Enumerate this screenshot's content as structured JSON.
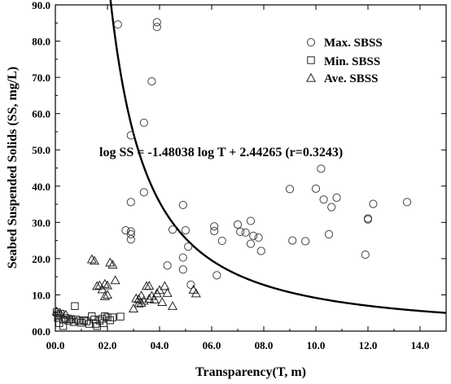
{
  "chart_data": {
    "type": "scatter",
    "xlabel": "Transparency(T, m)",
    "ylabel": "Seabed Suspended Solids  (SS, mg/L)",
    "xlim": [
      0,
      15
    ],
    "ylim": [
      0,
      90
    ],
    "xticks": [
      0,
      2,
      4,
      6,
      8,
      10,
      12,
      14
    ],
    "xtick_labels": [
      "00.0",
      "02.0",
      "04.0",
      "06.0",
      "08.0",
      "10.0",
      "12.0",
      "14.0"
    ],
    "yticks": [
      0,
      10,
      20,
      30,
      40,
      50,
      60,
      70,
      80,
      90
    ],
    "ytick_labels": [
      "00.0",
      "10.0",
      "20.0",
      "30.0",
      "40.0",
      "50.0",
      "60.0",
      "70.0",
      "80.0",
      "90.0"
    ],
    "grid": false,
    "legend_position": "top-right",
    "series": [
      {
        "name": "Max. SBSS",
        "marker": "circle",
        "points": [
          [
            2.4,
            84.6
          ],
          [
            3.9,
            85.2
          ],
          [
            3.9,
            83.9
          ],
          [
            3.7,
            68.9
          ],
          [
            3.4,
            57.5
          ],
          [
            2.9,
            54.0
          ],
          [
            3.4,
            38.3
          ],
          [
            2.9,
            35.6
          ],
          [
            4.9,
            34.8
          ],
          [
            2.7,
            27.8
          ],
          [
            2.9,
            27.5
          ],
          [
            2.9,
            26.7
          ],
          [
            2.9,
            25.3
          ],
          [
            4.5,
            28.0
          ],
          [
            5.0,
            27.8
          ],
          [
            5.1,
            23.3
          ],
          [
            4.9,
            20.3
          ],
          [
            4.9,
            17.0
          ],
          [
            4.3,
            18.1
          ],
          [
            5.2,
            12.8
          ],
          [
            6.1,
            28.9
          ],
          [
            6.1,
            27.6
          ],
          [
            6.2,
            15.4
          ],
          [
            6.4,
            24.9
          ],
          [
            7.0,
            29.4
          ],
          [
            7.1,
            27.4
          ],
          [
            7.3,
            27.2
          ],
          [
            7.5,
            30.4
          ],
          [
            7.5,
            24.1
          ],
          [
            7.6,
            26.3
          ],
          [
            7.8,
            25.8
          ],
          [
            7.9,
            22.1
          ],
          [
            9.0,
            39.2
          ],
          [
            9.1,
            25.0
          ],
          [
            9.6,
            24.8
          ],
          [
            10.0,
            39.3
          ],
          [
            10.2,
            44.8
          ],
          [
            10.3,
            36.3
          ],
          [
            10.6,
            34.2
          ],
          [
            10.8,
            36.8
          ],
          [
            10.5,
            26.7
          ],
          [
            12.0,
            31.1
          ],
          [
            12.0,
            30.8
          ],
          [
            12.2,
            35.1
          ],
          [
            13.5,
            35.6
          ],
          [
            11.9,
            21.1
          ]
        ]
      },
      {
        "name": "Min. SBSS",
        "marker": "square",
        "points": [
          [
            0.05,
            5.2
          ],
          [
            0.1,
            4.4
          ],
          [
            0.1,
            3.6
          ],
          [
            0.2,
            4.8
          ],
          [
            0.3,
            3.2
          ],
          [
            0.15,
            2.2
          ],
          [
            0.3,
            1.4
          ],
          [
            0.4,
            3.6
          ],
          [
            0.5,
            2.9
          ],
          [
            0.6,
            3.3
          ],
          [
            0.7,
            2.5
          ],
          [
            0.75,
            6.9
          ],
          [
            0.8,
            3.2
          ],
          [
            0.9,
            2.8
          ],
          [
            1.0,
            2.3
          ],
          [
            1.1,
            3.0
          ],
          [
            1.2,
            2.7
          ],
          [
            1.3,
            2.0
          ],
          [
            1.4,
            4.1
          ],
          [
            1.5,
            3.2
          ],
          [
            1.55,
            2.0
          ],
          [
            1.6,
            1.4
          ],
          [
            1.7,
            2.9
          ],
          [
            1.8,
            3.4
          ],
          [
            1.85,
            2.2
          ],
          [
            1.9,
            4.1
          ],
          [
            2.0,
            3.8
          ],
          [
            2.1,
            3.0
          ],
          [
            2.2,
            3.8
          ],
          [
            2.5,
            4.0
          ]
        ]
      },
      {
        "name": "Ave. SBSS",
        "marker": "triangle",
        "points": [
          [
            0.05,
            5.4
          ],
          [
            0.2,
            4.8
          ],
          [
            0.4,
            4.5
          ],
          [
            0.6,
            3.3
          ],
          [
            1.4,
            19.8
          ],
          [
            1.5,
            19.4
          ],
          [
            1.6,
            12.4
          ],
          [
            1.7,
            12.6
          ],
          [
            1.8,
            11.5
          ],
          [
            1.9,
            13.0
          ],
          [
            1.9,
            9.6
          ],
          [
            2.0,
            10.0
          ],
          [
            2.0,
            12.6
          ],
          [
            2.1,
            18.9
          ],
          [
            2.2,
            18.3
          ],
          [
            2.3,
            14.0
          ],
          [
            3.0,
            6.2
          ],
          [
            3.1,
            9.0
          ],
          [
            3.2,
            7.6
          ],
          [
            3.2,
            8.8
          ],
          [
            3.3,
            7.8
          ],
          [
            3.3,
            9.8
          ],
          [
            3.4,
            8.4
          ],
          [
            3.5,
            12.4
          ],
          [
            3.6,
            8.9
          ],
          [
            3.6,
            12.5
          ],
          [
            3.7,
            9.7
          ],
          [
            3.8,
            8.7
          ],
          [
            3.9,
            10.4
          ],
          [
            4.0,
            11.3
          ],
          [
            4.1,
            8.0
          ],
          [
            4.2,
            12.4
          ],
          [
            4.3,
            10.5
          ],
          [
            4.5,
            6.9
          ],
          [
            5.3,
            11.4
          ],
          [
            5.4,
            10.4
          ]
        ]
      }
    ],
    "regression": {
      "label": "log SS = -1.48038 log T + 2.44265 (r=0.3243)",
      "slope": -1.48038,
      "intercept": 2.44265,
      "x_range": [
        0.16,
        15
      ]
    }
  }
}
